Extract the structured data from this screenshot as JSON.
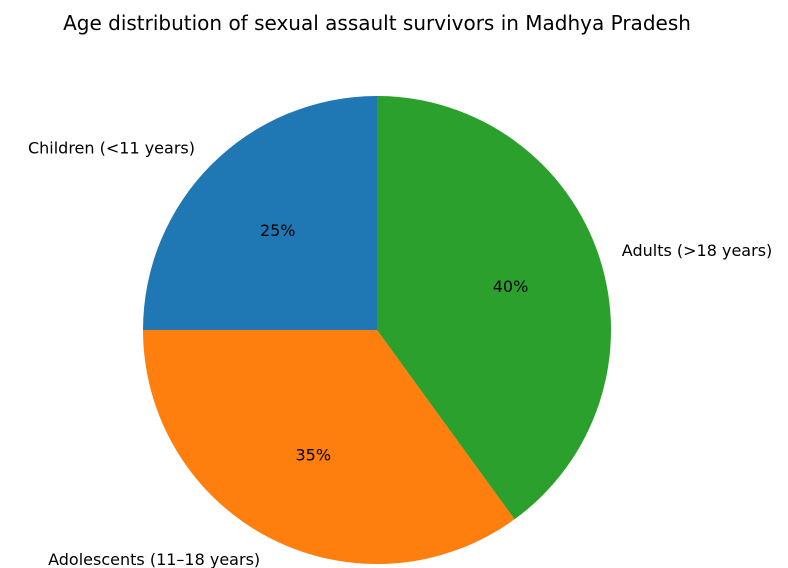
{
  "chart_data": {
    "type": "pie",
    "title": "Age distribution of sexual assault survivors in Madhya Pradesh",
    "categories": [
      "Children (<11 years)",
      "Adolescents (11–18 years)",
      "Adults (>18 years)"
    ],
    "values": [
      25,
      35,
      40
    ],
    "percent_labels": [
      "25%",
      "35%",
      "40%"
    ],
    "colors": [
      "#1f77b4",
      "#ff7f0e",
      "#2ca02c"
    ],
    "start_angle_deg": 90,
    "direction": "counterclockwise",
    "legend": "none"
  }
}
